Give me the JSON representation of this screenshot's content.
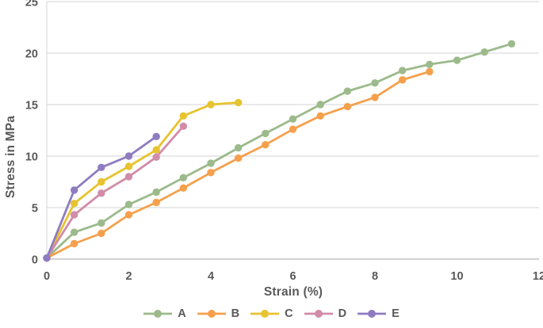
{
  "figure": {
    "xlabel": "Strain (%)",
    "ylabel": "Stress in MPa"
  },
  "chart_data": {
    "type": "line",
    "title": "",
    "xlabel": "Strain (%)",
    "ylabel": "Stress in MPa",
    "xlim": [
      0,
      12
    ],
    "ylim": [
      0,
      25
    ],
    "x_ticks": [
      0,
      2,
      4,
      6,
      8,
      10,
      12
    ],
    "y_ticks": [
      0,
      5,
      10,
      15,
      20,
      25
    ],
    "grid": "horizontal",
    "legend_position": "bottom",
    "marker": "circle",
    "text_color": "#595959",
    "grid_color": "#dcdcdc",
    "axis_color": "#c4c4c4",
    "series": [
      {
        "name": "A",
        "color": "#9cba8b",
        "x": [
          0,
          0.67,
          1.33,
          2,
          2.67,
          3.33,
          4,
          4.67,
          5.33,
          6,
          6.67,
          7.33,
          8,
          8.67,
          9.33,
          10,
          10.67,
          11.33
        ],
        "y": [
          0.1,
          2.6,
          3.5,
          5.3,
          6.5,
          7.9,
          9.3,
          10.8,
          12.2,
          13.6,
          15.0,
          16.3,
          17.1,
          18.3,
          18.9,
          19.3,
          20.1,
          20.9
        ]
      },
      {
        "name": "B",
        "color": "#f5a04c",
        "x": [
          0,
          0.67,
          1.33,
          2,
          2.67,
          3.33,
          4,
          4.67,
          5.33,
          6,
          6.67,
          7.33,
          8,
          8.67,
          9.33
        ],
        "y": [
          0.1,
          1.5,
          2.5,
          4.3,
          5.5,
          6.9,
          8.4,
          9.8,
          11.1,
          12.6,
          13.9,
          14.8,
          15.7,
          17.4,
          18.2
        ]
      },
      {
        "name": "C",
        "color": "#e7c32f",
        "x": [
          0,
          0.67,
          1.33,
          2,
          2.67,
          3.33,
          4,
          4.67
        ],
        "y": [
          0.1,
          5.4,
          7.5,
          9.0,
          10.6,
          13.9,
          15.0,
          15.2
        ]
      },
      {
        "name": "D",
        "color": "#d18ca9",
        "x": [
          0,
          0.67,
          1.33,
          2,
          2.67,
          3.33
        ],
        "y": [
          0.1,
          4.3,
          6.4,
          8.0,
          9.9,
          12.9
        ]
      },
      {
        "name": "E",
        "color": "#8f7cc0",
        "x": [
          0,
          0.67,
          1.33,
          2,
          2.67
        ],
        "y": [
          0.1,
          6.7,
          8.9,
          10.0,
          11.9
        ]
      }
    ]
  }
}
